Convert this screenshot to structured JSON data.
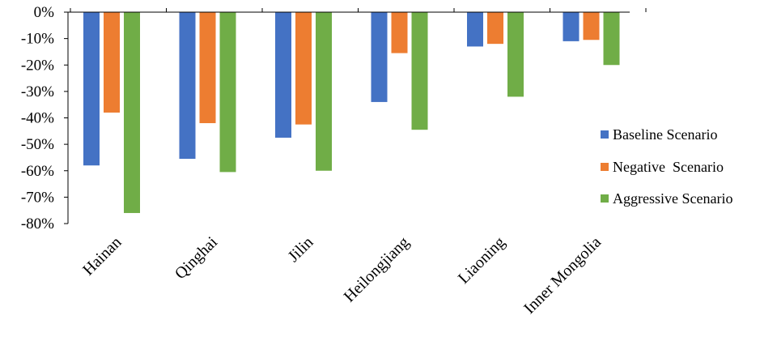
{
  "chart_data": {
    "type": "bar",
    "title": "",
    "xlabel": "",
    "ylabel": "",
    "categories": [
      "Hainan",
      "Qinghai",
      "Jilin",
      "Heilongjiang",
      "Liaoning",
      "Inner Mongolia"
    ],
    "series": [
      {
        "name": "Baseline Scenario",
        "color": "#4472C4",
        "values": [
          -58,
          -55.5,
          -47.5,
          -34,
          -13,
          -11
        ]
      },
      {
        "name": "Negative  Scenario",
        "color": "#ED7D31",
        "values": [
          -38,
          -42,
          -42.5,
          -15.5,
          -12,
          -10.5
        ]
      },
      {
        "name": "Aggressive Scenario",
        "color": "#70AD47",
        "values": [
          -76,
          -60.5,
          -60,
          -44.5,
          -32,
          -20
        ]
      }
    ],
    "ylim": [
      -80,
      0
    ],
    "yticks": [
      0,
      -10,
      -20,
      -30,
      -40,
      -50,
      -60,
      -70,
      -80
    ],
    "ytick_labels": [
      "0%",
      "-10%",
      "-20%",
      "-30%",
      "-40%",
      "-50%",
      "-60%",
      "-70%",
      "-80%"
    ],
    "grid": false,
    "legend_position": "right"
  }
}
